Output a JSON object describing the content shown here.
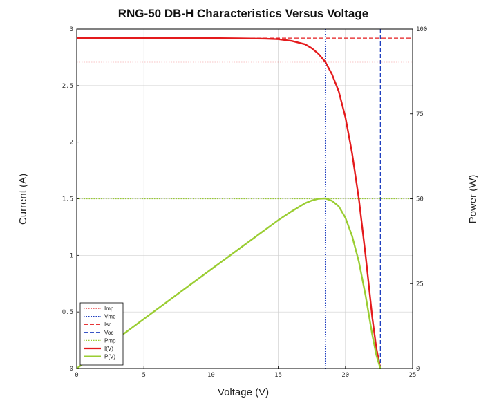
{
  "chart_data": {
    "type": "line",
    "title": "RNG-50 DB-H Characteristics Versus Voltage",
    "xlabel": "Voltage (V)",
    "ylabel_left": "Current (A)",
    "ylabel_right": "Power (W)",
    "xlim": [
      0,
      25
    ],
    "ylim_left": [
      0,
      3
    ],
    "ylim_right": [
      0,
      100
    ],
    "x_ticks": [
      "0",
      "5",
      "10",
      "15",
      "20",
      "25"
    ],
    "y_ticks_left": [
      "0",
      "0.5",
      "1",
      "1.5",
      "2",
      "2.5",
      "3"
    ],
    "y_ticks_right": [
      "0",
      "25",
      "50",
      "75",
      "100"
    ],
    "grid": true,
    "legend_position": "bottom-left",
    "reference_lines": {
      "Imp": 2.71,
      "Vmp": 18.5,
      "Isc": 2.92,
      "Voc": 22.6,
      "Pmp": 50
    },
    "series": [
      {
        "name": "Imp",
        "kind": "hline-left",
        "value": 2.71,
        "color": "#e41a1c",
        "dash": "dotted"
      },
      {
        "name": "Vmp",
        "kind": "vline",
        "value": 18.5,
        "color": "#1f3fbf",
        "dash": "dotted"
      },
      {
        "name": "Isc",
        "kind": "hline-left",
        "value": 2.92,
        "color": "#e41a1c",
        "dash": "dashed"
      },
      {
        "name": "Voc",
        "kind": "vline",
        "value": 22.6,
        "color": "#1f3fbf",
        "dash": "dashed"
      },
      {
        "name": "Pmp",
        "kind": "hline-right",
        "value": 50,
        "color": "#9acd32",
        "dash": "dotted"
      },
      {
        "name": "I(V)",
        "kind": "curve-left",
        "color": "#e41a1c",
        "dash": "solid",
        "x": [
          0,
          5,
          10,
          12,
          14,
          15,
          16,
          17,
          17.5,
          18,
          18.5,
          19,
          19.5,
          20,
          20.5,
          21,
          21.5,
          22,
          22.3,
          22.6
        ],
        "y": [
          2.92,
          2.92,
          2.92,
          2.918,
          2.915,
          2.91,
          2.895,
          2.865,
          2.83,
          2.78,
          2.71,
          2.6,
          2.45,
          2.22,
          1.9,
          1.5,
          1.0,
          0.45,
          0.18,
          0
        ]
      },
      {
        "name": "P(V)",
        "kind": "curve-right",
        "color": "#9acd32",
        "dash": "solid",
        "x": [
          0,
          5,
          10,
          12,
          14,
          15,
          16,
          17,
          17.5,
          18,
          18.5,
          19,
          19.5,
          20,
          20.5,
          21,
          21.5,
          22,
          22.3,
          22.6
        ],
        "y": [
          0,
          14.6,
          29.2,
          35.0,
          40.8,
          43.7,
          46.3,
          48.7,
          49.5,
          50.0,
          50.1,
          49.4,
          47.8,
          44.4,
          39.0,
          31.5,
          21.5,
          9.9,
          4.0,
          0
        ]
      }
    ]
  }
}
